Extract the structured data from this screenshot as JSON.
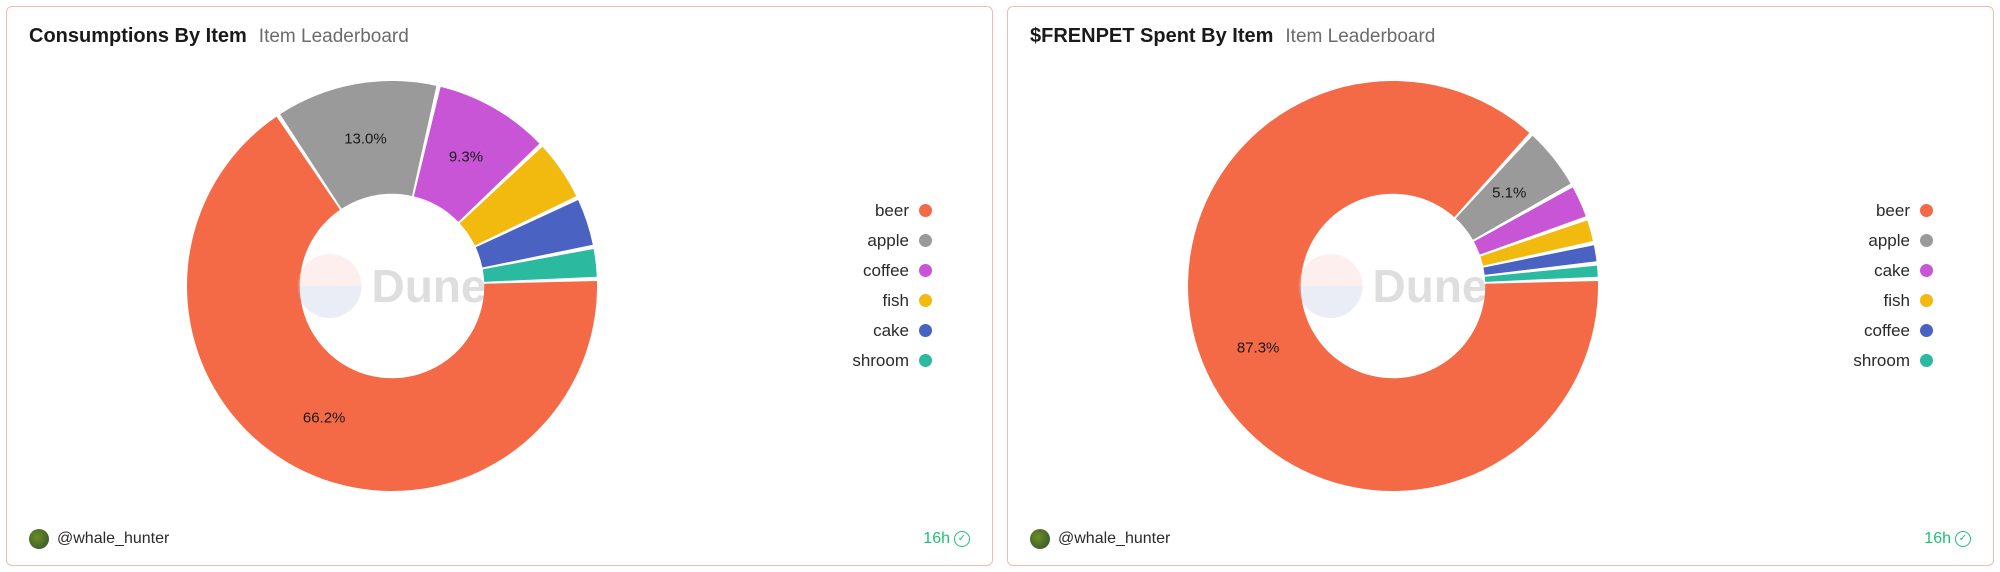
{
  "watermark_text": "Dune",
  "cards": [
    {
      "title": "Consumptions By Item",
      "subtitle": "Item Leaderboard",
      "author": "@whale_hunter",
      "timestamp": "16h",
      "chart": {
        "type": "donut",
        "inner_radius_pct": 45,
        "outer_radius_pct": 100,
        "gap_deg": 1.2,
        "background_color": "#ffffff",
        "slices": [
          {
            "name": "beer",
            "value": 66.2,
            "color": "#f46a47",
            "label": "66.2%",
            "show_label": true
          },
          {
            "name": "apple",
            "value": 13.0,
            "color": "#9a9a9a",
            "label": "13.0%",
            "show_label": true
          },
          {
            "name": "coffee",
            "value": 9.3,
            "color": "#c855d6",
            "label": "9.3%",
            "show_label": true
          },
          {
            "name": "fish",
            "value": 5.0,
            "color": "#f2b90f",
            "label": "5.0%",
            "show_label": false
          },
          {
            "name": "cake",
            "value": 4.0,
            "color": "#4a62c2",
            "label": "4.0%",
            "show_label": false
          },
          {
            "name": "shroom",
            "value": 2.5,
            "color": "#2bb9a0",
            "label": "2.5%",
            "show_label": false
          }
        ],
        "legend": [
          {
            "label": "beer",
            "color": "#f46a47"
          },
          {
            "label": "apple",
            "color": "#9a9a9a"
          },
          {
            "label": "coffee",
            "color": "#c855d6"
          },
          {
            "label": "fish",
            "color": "#f2b90f"
          },
          {
            "label": "cake",
            "color": "#4a62c2"
          },
          {
            "label": "shroom",
            "color": "#2bb9a0"
          }
        ],
        "label_fontsize": 15,
        "legend_fontsize": 17
      }
    },
    {
      "title": "$FRENPET Spent By Item",
      "subtitle": "Item Leaderboard",
      "author": "@whale_hunter",
      "timestamp": "16h",
      "chart": {
        "type": "donut",
        "inner_radius_pct": 45,
        "outer_radius_pct": 100,
        "gap_deg": 1.2,
        "background_color": "#ffffff",
        "slices": [
          {
            "name": "beer",
            "value": 87.3,
            "color": "#f46a47",
            "label": "87.3%",
            "show_label": true
          },
          {
            "name": "apple",
            "value": 5.1,
            "color": "#9a9a9a",
            "label": "5.1%",
            "show_label": true
          },
          {
            "name": "cake",
            "value": 2.8,
            "color": "#c855d6",
            "label": "2.8%",
            "show_label": false
          },
          {
            "name": "fish",
            "value": 2.0,
            "color": "#f2b90f",
            "label": "2.0%",
            "show_label": false
          },
          {
            "name": "coffee",
            "value": 1.6,
            "color": "#4a62c2",
            "label": "1.6%",
            "show_label": false
          },
          {
            "name": "shroom",
            "value": 1.2,
            "color": "#2bb9a0",
            "label": "1.2%",
            "show_label": false
          }
        ],
        "legend": [
          {
            "label": "beer",
            "color": "#f46a47"
          },
          {
            "label": "apple",
            "color": "#9a9a9a"
          },
          {
            "label": "cake",
            "color": "#c855d6"
          },
          {
            "label": "fish",
            "color": "#f2b90f"
          },
          {
            "label": "coffee",
            "color": "#4a62c2"
          },
          {
            "label": "shroom",
            "color": "#2bb9a0"
          }
        ],
        "label_fontsize": 15,
        "legend_fontsize": 17
      }
    }
  ]
}
